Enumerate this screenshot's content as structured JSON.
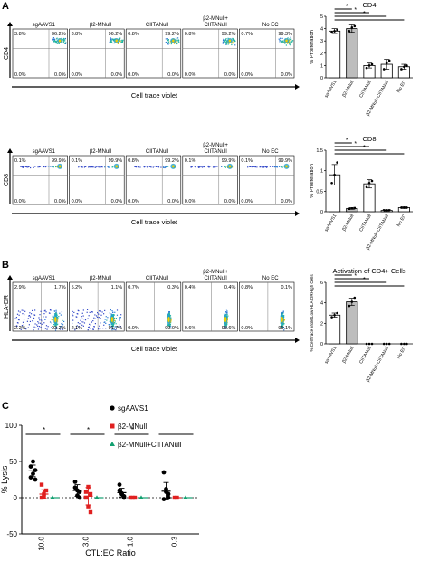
{
  "panels": {
    "A": "A",
    "B": "B",
    "C": "C"
  },
  "flow_rows": [
    {
      "ylabel": "CD4",
      "xlabel": "Cell trace violet",
      "plots": [
        {
          "title": "sgAAVS1",
          "tl": "3.8%",
          "tr": "96.2%",
          "bl": "0.0%",
          "br": "0.0%"
        },
        {
          "title": "β2-MNull",
          "tl": "3.8%",
          "tr": "96.2%",
          "bl": "0.0%",
          "br": "0.0%"
        },
        {
          "title": "CIITANull",
          "tl": "0.8%",
          "tr": "99.2%",
          "bl": "0.0%",
          "br": "0.0%"
        },
        {
          "title": "β2-MNull+ CIITANull",
          "tl": "0.8%",
          "tr": "99.2%",
          "bl": "0.0%",
          "br": "0.0%"
        },
        {
          "title": "No EC",
          "tl": "0.7%",
          "tr": "99.3%",
          "bl": "0.0%",
          "br": "0.0%"
        }
      ]
    },
    {
      "ylabel": "CD8",
      "xlabel": "Cell trace violet",
      "plots": [
        {
          "title": "sgAAVS1",
          "tl": "0.1%",
          "tr": "99.9%",
          "bl": "0.0%",
          "br": "0.0%"
        },
        {
          "title": "β2-MNull",
          "tl": "0.1%",
          "tr": "99.9%",
          "bl": "0.0%",
          "br": "0.0%"
        },
        {
          "title": "CIITANull",
          "tl": "0.8%",
          "tr": "99.2%",
          "bl": "0.0%",
          "br": "0.0%"
        },
        {
          "title": "β2-MNull+ CIITANull",
          "tl": "0.1%",
          "tr": "99.9%",
          "bl": "0.0%",
          "br": "0.0%"
        },
        {
          "title": "No EC",
          "tl": "0.1%",
          "tr": "99.9%",
          "bl": "0.0%",
          "br": "0.0%"
        }
      ]
    },
    {
      "ylabel": "HLA-DR",
      "xlabel": "Cell trace violet",
      "plots": [
        {
          "title": "sgAAVS1",
          "tl": "2.9%",
          "tr": "1.7%",
          "bl": "2.2%",
          "br": "93.2%"
        },
        {
          "title": "β2-MNull",
          "tl": "5.2%",
          "tr": "1.1%",
          "bl": "2.1%",
          "br": "91.7%"
        },
        {
          "title": "CIITANull",
          "tl": "0.7%",
          "tr": "0.3%",
          "bl": "0.0%",
          "br": "99.0%"
        },
        {
          "title": "β2-MNull+ CIITANull",
          "tl": "0.4%",
          "tr": "0.4%",
          "bl": "0.6%",
          "br": "98.6%"
        },
        {
          "title": "No EC",
          "tl": "0.8%",
          "tr": "0.1%",
          "bl": "0.0%",
          "br": "99.1%"
        }
      ]
    }
  ],
  "chart_data": [
    {
      "type": "bar",
      "title": "CD4",
      "ylabel": "% Proliferation",
      "categories": [
        "sgAAVS1",
        "β2-MNull",
        "CIITANull",
        "β2-MNull+CIITANull",
        "No EC"
      ],
      "values": [
        3.8,
        4.0,
        1.0,
        1.1,
        0.9
      ],
      "errors": [
        0.2,
        0.3,
        0.2,
        0.4,
        0.2
      ],
      "ylim": [
        0,
        5
      ],
      "yticks": [
        0,
        1,
        2,
        3,
        4,
        5
      ],
      "bar_fills": [
        "#ffffff",
        "#bdbdbd",
        "#ffffff",
        "#ffffff",
        "#ffffff"
      ],
      "points": [
        [
          3.7,
          3.8,
          3.9
        ],
        [
          3.8,
          4.1,
          4.2
        ],
        [
          0.8,
          1.0,
          1.1
        ],
        [
          0.7,
          1.2,
          1.4
        ],
        [
          0.7,
          0.9,
          1.0
        ]
      ],
      "significance_label": "*"
    },
    {
      "type": "bar",
      "title": "CD8",
      "ylabel": "% Proliferation",
      "categories": [
        "sgAAVS1",
        "β2-MNull",
        "CIITANull",
        "β2-MNull+CIITANull",
        "No EC"
      ],
      "values": [
        0.9,
        0.08,
        0.68,
        0.03,
        0.1
      ],
      "errors": [
        0.25,
        0.02,
        0.1,
        0.01,
        0.02
      ],
      "ylim": [
        0,
        1.5
      ],
      "yticks": [
        0.0,
        0.5,
        1.0,
        1.5
      ],
      "bar_fills": [
        "#ffffff",
        "#bdbdbd",
        "#ffffff",
        "#ffffff",
        "#ffffff"
      ],
      "points": [
        [
          0.7,
          0.9,
          1.2
        ],
        [
          0.07,
          0.08,
          0.09
        ],
        [
          0.6,
          0.7,
          0.75
        ],
        [
          0.03,
          0.03,
          0.03
        ],
        [
          0.1,
          0.1,
          0.1
        ]
      ],
      "significance_label": "*"
    },
    {
      "type": "bar",
      "title": "Activation of CD4+ Cells",
      "ylabel": "% CellTrace VioletLow HLA-DRHigh Cells",
      "categories": [
        "sgAAVS1",
        "β2-MNull",
        "CIITANull",
        "β2-MNull+CIITANull",
        "No EC"
      ],
      "values": [
        2.8,
        4.1,
        0.0,
        0.0,
        0.0
      ],
      "errors": [
        0.2,
        0.35,
        0.0,
        0.0,
        0.0
      ],
      "ylim": [
        0,
        6
      ],
      "yticks": [
        0,
        2,
        4,
        6
      ],
      "bar_fills": [
        "#ffffff",
        "#bdbdbd",
        "#ffffff",
        "#ffffff",
        "#ffffff"
      ],
      "points": [
        [
          2.6,
          2.8,
          3.0
        ],
        [
          3.7,
          4.1,
          4.5
        ],
        [
          0,
          0,
          0
        ],
        [
          0,
          0,
          0
        ],
        [
          0,
          0,
          0
        ]
      ],
      "significance_label": "*"
    },
    {
      "type": "scatter",
      "ylabel": "% Lysis",
      "xlabel": "CTL:EC Ratio",
      "categories": [
        "10.0",
        "3.0",
        "1.0",
        "0.3"
      ],
      "ylim": [
        -50,
        100
      ],
      "yticks": [
        -50,
        0,
        50,
        100
      ],
      "legend": "top-right",
      "series": [
        {
          "name": "sgAAVS1",
          "color": "#000000",
          "marker": "circle",
          "values": [
            [
              28,
              33,
              38,
              43,
              50,
              25
            ],
            [
              14,
              10,
              8,
              22,
              3,
              0
            ],
            [
              10,
              5,
              2,
              18,
              6,
              0
            ],
            [
              35,
              12,
              5,
              -2,
              8,
              0
            ]
          ],
          "mean": [
            37,
            10,
            7,
            9
          ],
          "sd": [
            8,
            8,
            6,
            12
          ]
        },
        {
          "name": "β2-MNull",
          "color": "#e02020",
          "marker": "square",
          "values": [
            [
              0,
              5,
              10,
              18,
              2
            ],
            [
              0,
              -12,
              -20,
              8,
              15,
              5
            ],
            [
              0,
              0,
              0
            ],
            [
              0,
              0
            ]
          ],
          "mean": [
            5,
            2,
            0,
            0
          ],
          "sd": [
            6,
            12,
            0,
            0
          ]
        },
        {
          "name": "β2-MNull+CIITANull",
          "color": "#12a070",
          "marker": "triangle",
          "values": [
            [
              0
            ],
            [
              0
            ],
            [
              0
            ],
            [
              0
            ]
          ],
          "mean": [
            0,
            0,
            0,
            0
          ],
          "sd": [
            0,
            0,
            0,
            0
          ]
        }
      ],
      "significance_label": "*"
    }
  ]
}
